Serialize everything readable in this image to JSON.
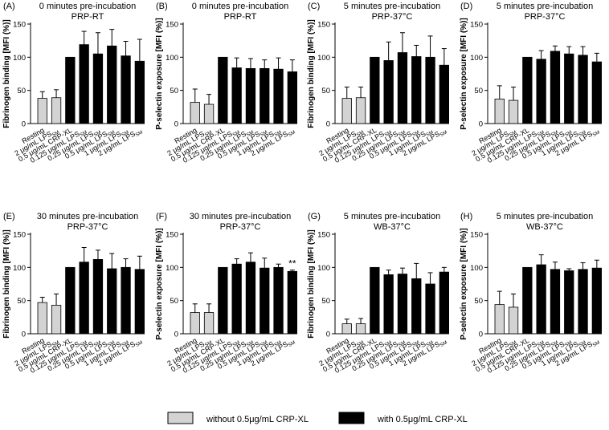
{
  "legend": {
    "items": [
      {
        "label": "without 0.5μg/mL CRP-XL",
        "color": "#d3d3d3"
      },
      {
        "label": "with 0.5μg/mL CRP-XL",
        "color": "#000000"
      }
    ]
  },
  "chart_data": [
    {
      "type": "bar",
      "panel": "(A)",
      "title": "0 minutes pre-incubation",
      "subtitle": "PRP-RT",
      "ylabel": "Fibrinogen binding [MFI (%)]",
      "ylim": [
        0,
        150
      ],
      "yticks": [
        0,
        50,
        100,
        150
      ],
      "categories": [
        "Resting",
        "2 μg/mL LPS_SM",
        "0.5 μg/mL CRP-XL",
        "0.125 μg/mL LPS_SM",
        "0.25 μg/mL LPS_SM",
        "0.5 μg/mL LPS_SM",
        "1 μg/mL LPS_SM",
        "2 μg/mL LPS_SM"
      ],
      "values": [
        38,
        39,
        100,
        119,
        105,
        117,
        102,
        94
      ],
      "errors": [
        10,
        12,
        0,
        20,
        32,
        25,
        22,
        33
      ],
      "colors": [
        "#d3d3d3",
        "#d3d3d3",
        "#000000",
        "#000000",
        "#000000",
        "#000000",
        "#000000",
        "#000000"
      ],
      "annotations": []
    },
    {
      "type": "bar",
      "panel": "(B)",
      "title": "0 minutes pre-incubation",
      "subtitle": "PRP-RT",
      "ylabel": "P-selectin exposure [MFI (%)]",
      "ylim": [
        0,
        150
      ],
      "yticks": [
        0,
        50,
        100,
        150
      ],
      "categories": [
        "Resting",
        "2 μg/mL LPS_SM",
        "0.5 μg/mL CRP-XL",
        "0.125 μg/mL LPS_SM",
        "0.25 μg/mL LPS_SM",
        "0.5 μg/mL LPS_SM",
        "1 μg/mL LPS_SM",
        "2 μg/mL LPS_SM"
      ],
      "values": [
        32,
        29,
        100,
        84,
        83,
        83,
        82,
        78
      ],
      "errors": [
        20,
        15,
        0,
        15,
        15,
        13,
        17,
        18
      ],
      "colors": [
        "#d3d3d3",
        "#d3d3d3",
        "#000000",
        "#000000",
        "#000000",
        "#000000",
        "#000000",
        "#000000"
      ],
      "annotations": []
    },
    {
      "type": "bar",
      "panel": "(C)",
      "title": "5 minutes pre-incubation",
      "subtitle": "PRP-37°C",
      "ylabel": "Fibrinogen binding [MFI (%)]",
      "ylim": [
        0,
        150
      ],
      "yticks": [
        0,
        50,
        100,
        150
      ],
      "categories": [
        "Resting",
        "2 μg/mL LPS_SM",
        "0.5 μg/mL CRP-XL",
        "0.125 μg/mL LPS_SM",
        "0.25 μg/mL LPS_SM",
        "0.5 μg/mL LPS_SM",
        "1 μg/mL LPS_SM",
        "2 μg/mL LPS_SM"
      ],
      "values": [
        38,
        39,
        100,
        95,
        107,
        101,
        100,
        88
      ],
      "errors": [
        17,
        16,
        0,
        28,
        30,
        17,
        32,
        25
      ],
      "colors": [
        "#d3d3d3",
        "#d3d3d3",
        "#000000",
        "#000000",
        "#000000",
        "#000000",
        "#000000",
        "#000000"
      ],
      "annotations": []
    },
    {
      "type": "bar",
      "panel": "(D)",
      "title": "5 minutes pre-incubation",
      "subtitle": "PRP-37°C",
      "ylabel": "P-selectin exposure [MFI (%)]",
      "ylim": [
        0,
        150
      ],
      "yticks": [
        0,
        50,
        100,
        150
      ],
      "categories": [
        "Resting",
        "2 μg/mL LPS_SM",
        "0.5 μg/mL CRP-XL",
        "0.125 μg/mL LPS_SM",
        "0.25 μg/mL LPS_SM",
        "0.5 μg/mL LPS_SM",
        "1 μg/mL LPS_SM",
        "2 μg/mL LPS_SM"
      ],
      "values": [
        37,
        35,
        100,
        97,
        109,
        105,
        103,
        93
      ],
      "errors": [
        20,
        20,
        0,
        13,
        8,
        11,
        13,
        13
      ],
      "colors": [
        "#d3d3d3",
        "#d3d3d3",
        "#000000",
        "#000000",
        "#000000",
        "#000000",
        "#000000",
        "#000000"
      ],
      "annotations": []
    },
    {
      "type": "bar",
      "panel": "(E)",
      "title": "30 minutes pre-incubation",
      "subtitle": "PRP-37°C",
      "ylabel": "Fibrinogen binding [MFI (%)]",
      "ylim": [
        0,
        150
      ],
      "yticks": [
        0,
        50,
        100,
        150
      ],
      "categories": [
        "Resting",
        "2 μg/mL LPS_SM",
        "0.5 μg/mL CRP-XL",
        "0.125 μg/mL LPS_SM",
        "0.25 μg/mL LPS_SM",
        "0.5 μg/mL LPS_SM",
        "1 μg/mL LPS_SM",
        "2 μg/mL LPS_SM"
      ],
      "values": [
        47,
        43,
        100,
        108,
        112,
        98,
        100,
        97
      ],
      "errors": [
        8,
        17,
        0,
        22,
        14,
        23,
        13,
        20
      ],
      "colors": [
        "#d3d3d3",
        "#d3d3d3",
        "#000000",
        "#000000",
        "#000000",
        "#000000",
        "#000000",
        "#000000"
      ],
      "annotations": []
    },
    {
      "type": "bar",
      "panel": "(F)",
      "title": "30 minutes pre-incubation",
      "subtitle": "PRP-37°C",
      "ylabel": "P-selectin exposure [MFI (%)]",
      "ylim": [
        0,
        150
      ],
      "yticks": [
        0,
        50,
        100,
        150
      ],
      "categories": [
        "Resting",
        "2 μg/mL LPS_SM",
        "0.5 μg/mL CRP-XL",
        "0.125 μg/mL LPS_SM",
        "0.25 μg/mL LPS_SM",
        "0.5 μg/mL LPS_SM",
        "1 μg/mL LPS_SM",
        "2 μg/mL LPS_SM"
      ],
      "values": [
        32,
        32,
        100,
        105,
        108,
        99,
        100,
        94
      ],
      "errors": [
        13,
        13,
        0,
        8,
        14,
        15,
        5,
        2
      ],
      "colors": [
        "#d3d3d3",
        "#d3d3d3",
        "#000000",
        "#000000",
        "#000000",
        "#000000",
        "#000000",
        "#000000"
      ],
      "annotations": [
        {
          "bar": 7,
          "text": "**"
        }
      ]
    },
    {
      "type": "bar",
      "panel": "(G)",
      "title": "5 minutes pre-incubation",
      "subtitle": "WB-37°C",
      "ylabel": "Fibrinogen binding [MFI (%)]",
      "ylim": [
        0,
        150
      ],
      "yticks": [
        0,
        50,
        100,
        150
      ],
      "categories": [
        "Resting",
        "2 μg/mL LPS_SM",
        "0.5 μg/mL CRP-XL",
        "0.125 μg/mL LPS_SM",
        "0.25 μg/mL LPS_SM",
        "0.5 μg/mL LPS_SM",
        "1 μg/mL LPS_SM",
        "2 μg/mL LPS_SM"
      ],
      "values": [
        15,
        15,
        100,
        89,
        90,
        83,
        75,
        93
      ],
      "errors": [
        7,
        8,
        0,
        7,
        9,
        23,
        17,
        7
      ],
      "colors": [
        "#d3d3d3",
        "#d3d3d3",
        "#000000",
        "#000000",
        "#000000",
        "#000000",
        "#000000",
        "#000000"
      ],
      "annotations": []
    },
    {
      "type": "bar",
      "panel": "(H)",
      "title": "5 minutes pre-incubation",
      "subtitle": "WB-37°C",
      "ylabel": "P-selectin exposure [MFI (%)]",
      "ylim": [
        0,
        150
      ],
      "yticks": [
        0,
        50,
        100,
        150
      ],
      "categories": [
        "Resting",
        "2 μg/mL LPS_SM",
        "0.5 μg/mL CRP-XL",
        "0.125 μg/mL LPS_SM",
        "0.25 μg/mL LPS_SM",
        "0.5 μg/mL LPS_SM",
        "1 μg/mL LPS_SM",
        "2 μg/mL LPS_SM"
      ],
      "values": [
        44,
        40,
        100,
        104,
        97,
        95,
        97,
        99
      ],
      "errors": [
        20,
        20,
        0,
        15,
        11,
        3,
        10,
        12
      ],
      "colors": [
        "#d3d3d3",
        "#d3d3d3",
        "#000000",
        "#000000",
        "#000000",
        "#000000",
        "#000000",
        "#000000"
      ],
      "annotations": []
    }
  ]
}
